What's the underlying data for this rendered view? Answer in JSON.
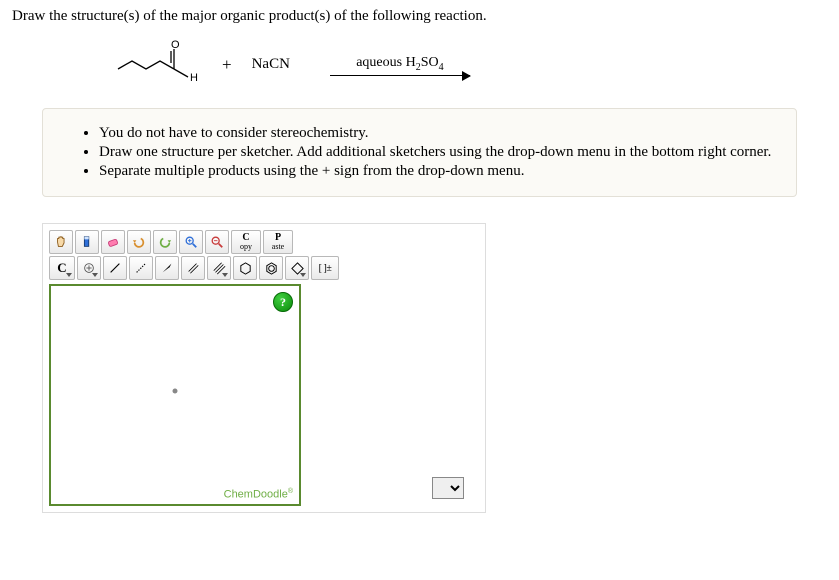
{
  "question": "Draw the structure(s) of the major organic product(s) of the following reaction.",
  "reaction": {
    "plus": "+",
    "reagent2": "NaCN",
    "arrow_label_html": "aqueous H<sub>2</sub>SO<sub>4</sub>"
  },
  "notes": [
    "You do not have to consider stereochemistry.",
    "Draw one structure per sketcher. Add additional sketchers using the drop-down menu in the bottom right corner.",
    "Separate multiple products using the + sign from the drop-down menu."
  ],
  "toolbar": {
    "copy_top": "C",
    "copy_bot": "opy",
    "paste_top": "P",
    "paste_bot": "aste",
    "element": "C",
    "charge": "[ ]±"
  },
  "brand": "ChemDoodle"
}
